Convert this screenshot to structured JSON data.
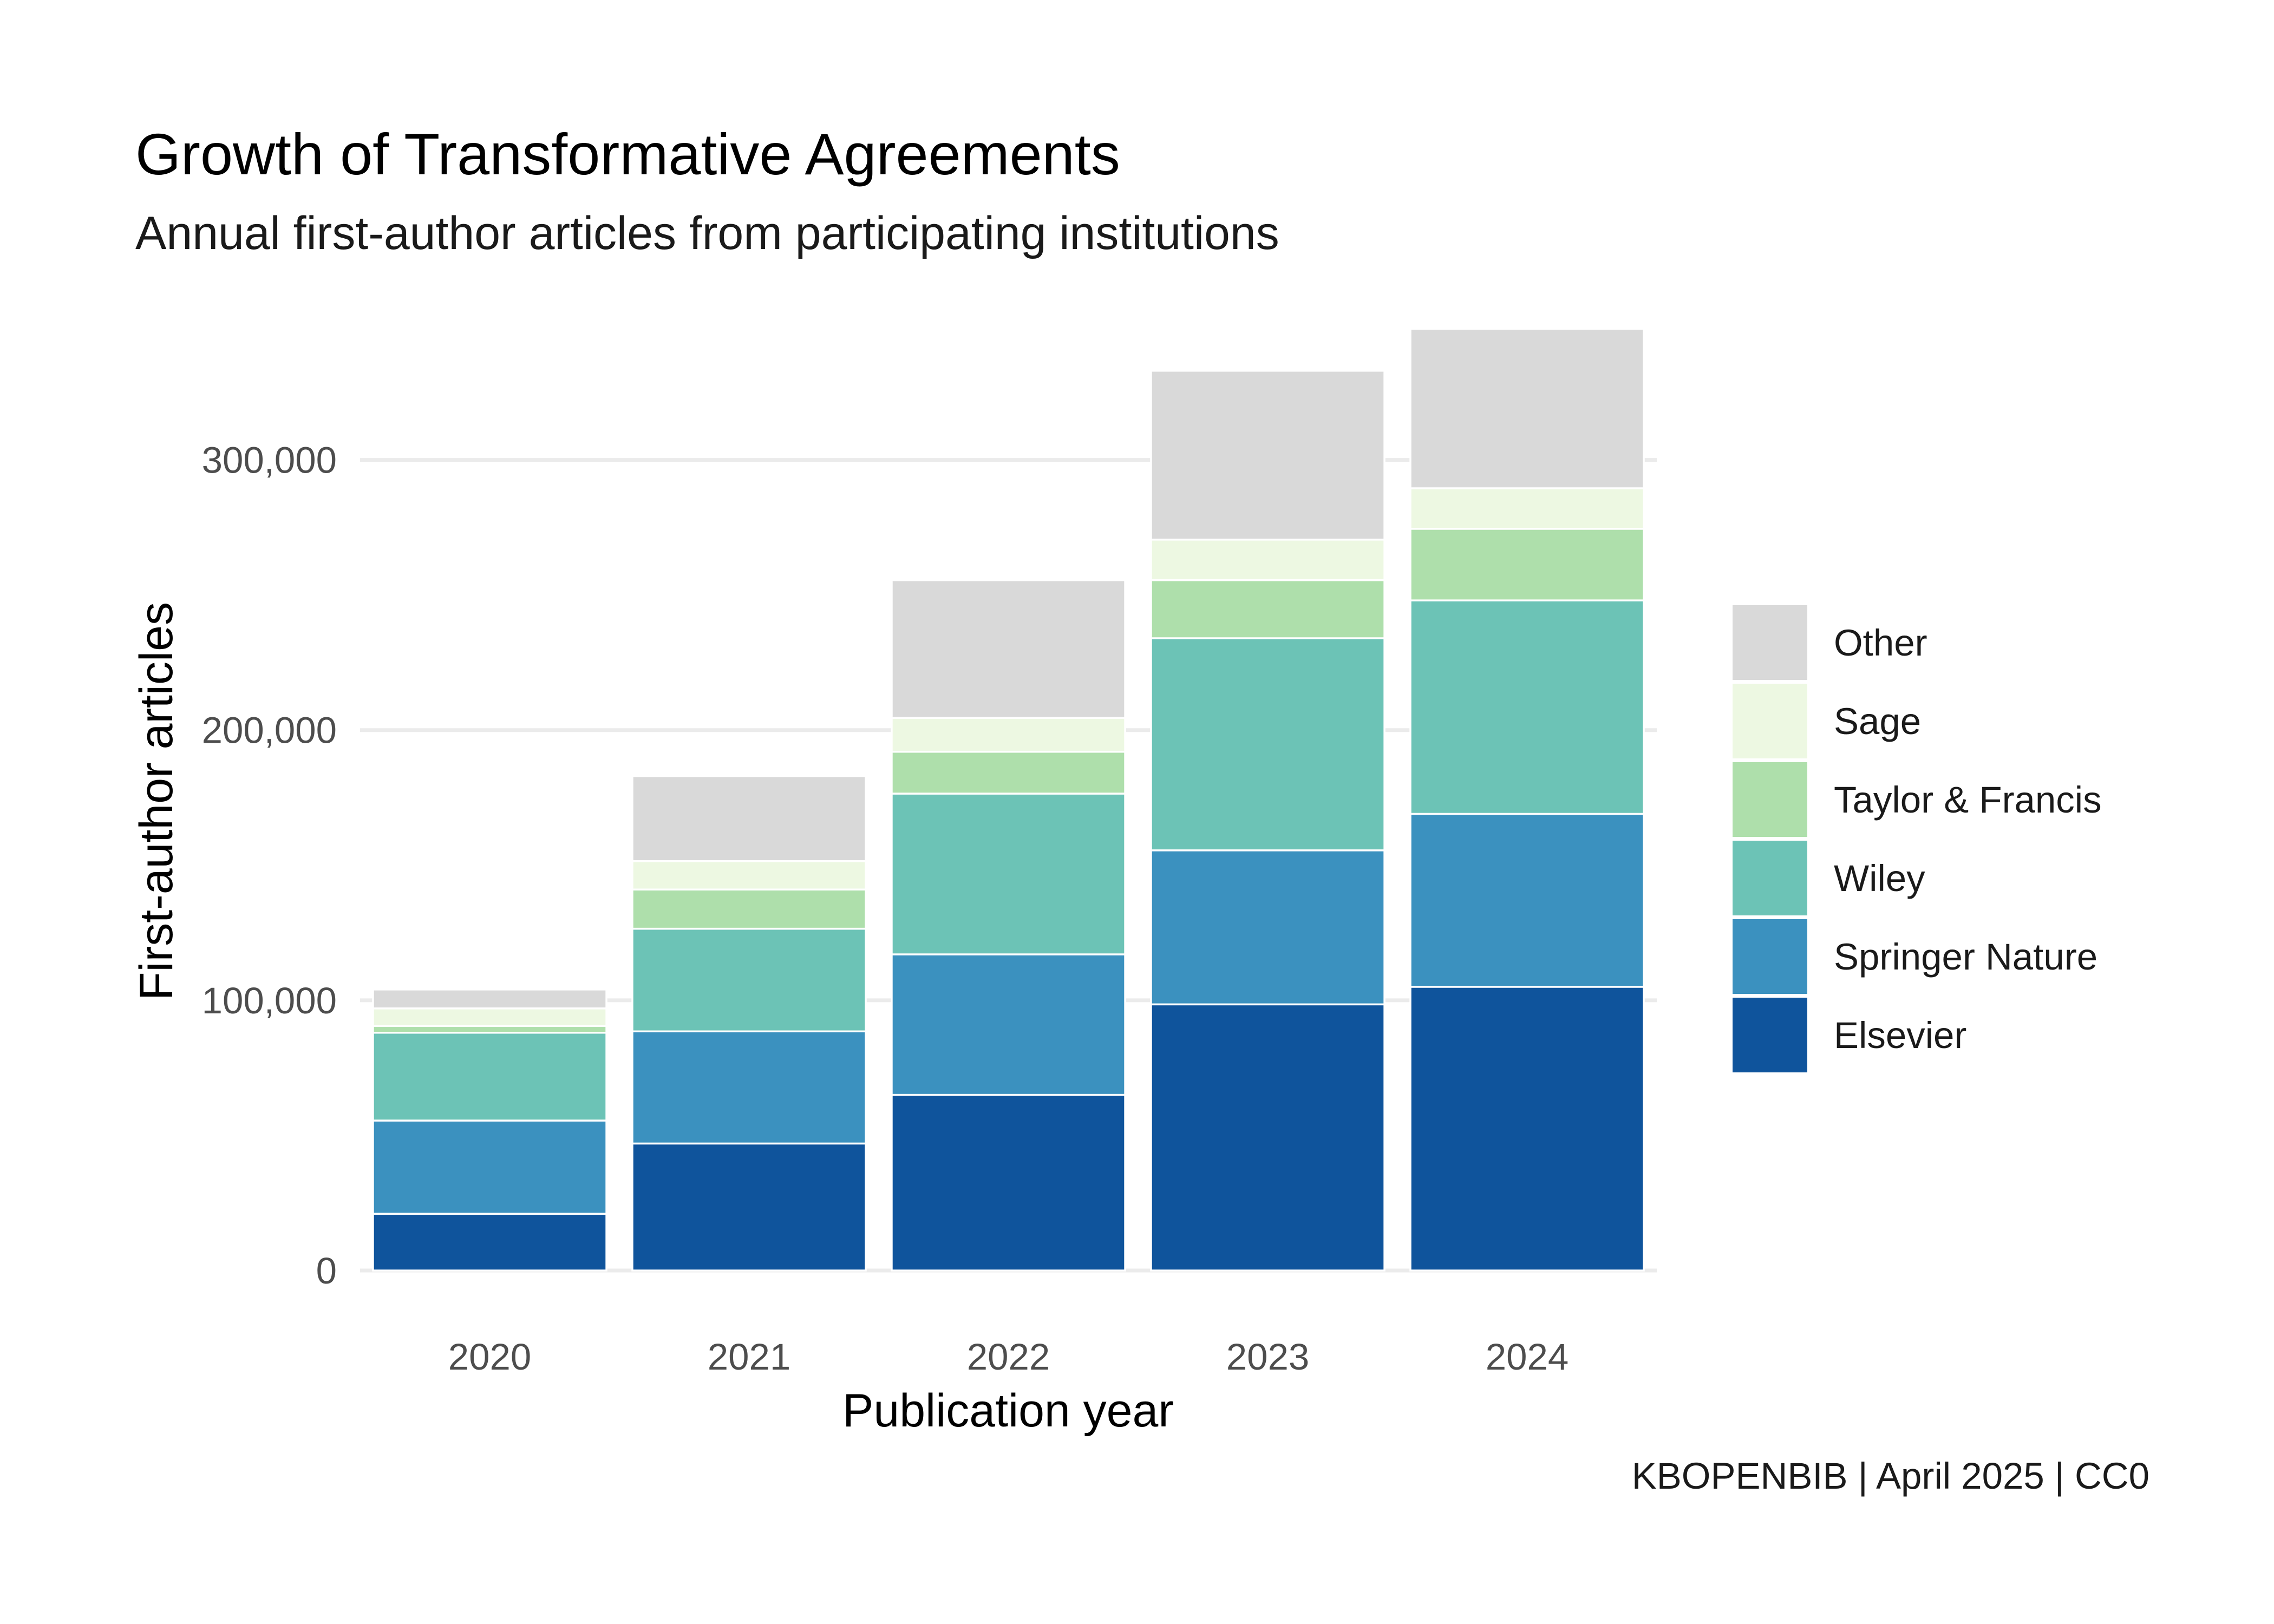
{
  "chart_data": {
    "type": "bar",
    "stacked": true,
    "title": "Growth of Transformative Agreements",
    "subtitle": "Annual first-author articles from participating institutions",
    "xlabel": "Publication year",
    "ylabel": "First-author articles",
    "caption": "KBOPENBIB | April 2025 | CC0",
    "categories": [
      "2020",
      "2021",
      "2022",
      "2023",
      "2024"
    ],
    "ylim": [
      0,
      350000
    ],
    "yticks": [
      0,
      100000,
      200000,
      300000
    ],
    "ytick_labels": [
      "0",
      "100,000",
      "200,000",
      "300,000"
    ],
    "grid": true,
    "legend_position": "right",
    "legend_order": [
      "Other",
      "Sage",
      "Taylor & Francis",
      "Wiley",
      "Springer Nature",
      "Elsevier"
    ],
    "series": [
      {
        "name": "Elsevier",
        "color": "#0f549c",
        "values": [
          21000,
          47000,
          65000,
          98500,
          105000
        ]
      },
      {
        "name": "Springer Nature",
        "color": "#3b91bf",
        "values": [
          34500,
          41500,
          52000,
          57000,
          64000
        ]
      },
      {
        "name": "Wiley",
        "color": "#6cc3b6",
        "values": [
          32500,
          38000,
          59500,
          78500,
          79000
        ]
      },
      {
        "name": "Taylor & Francis",
        "color": "#aedfab",
        "values": [
          2500,
          14500,
          15500,
          21500,
          26500
        ]
      },
      {
        "name": "Sage",
        "color": "#edf8e2",
        "values": [
          6500,
          10500,
          12500,
          15000,
          15000
        ]
      },
      {
        "name": "Other",
        "color": "#d9d9d9",
        "values": [
          7000,
          31500,
          51000,
          62500,
          59000
        ]
      }
    ]
  }
}
